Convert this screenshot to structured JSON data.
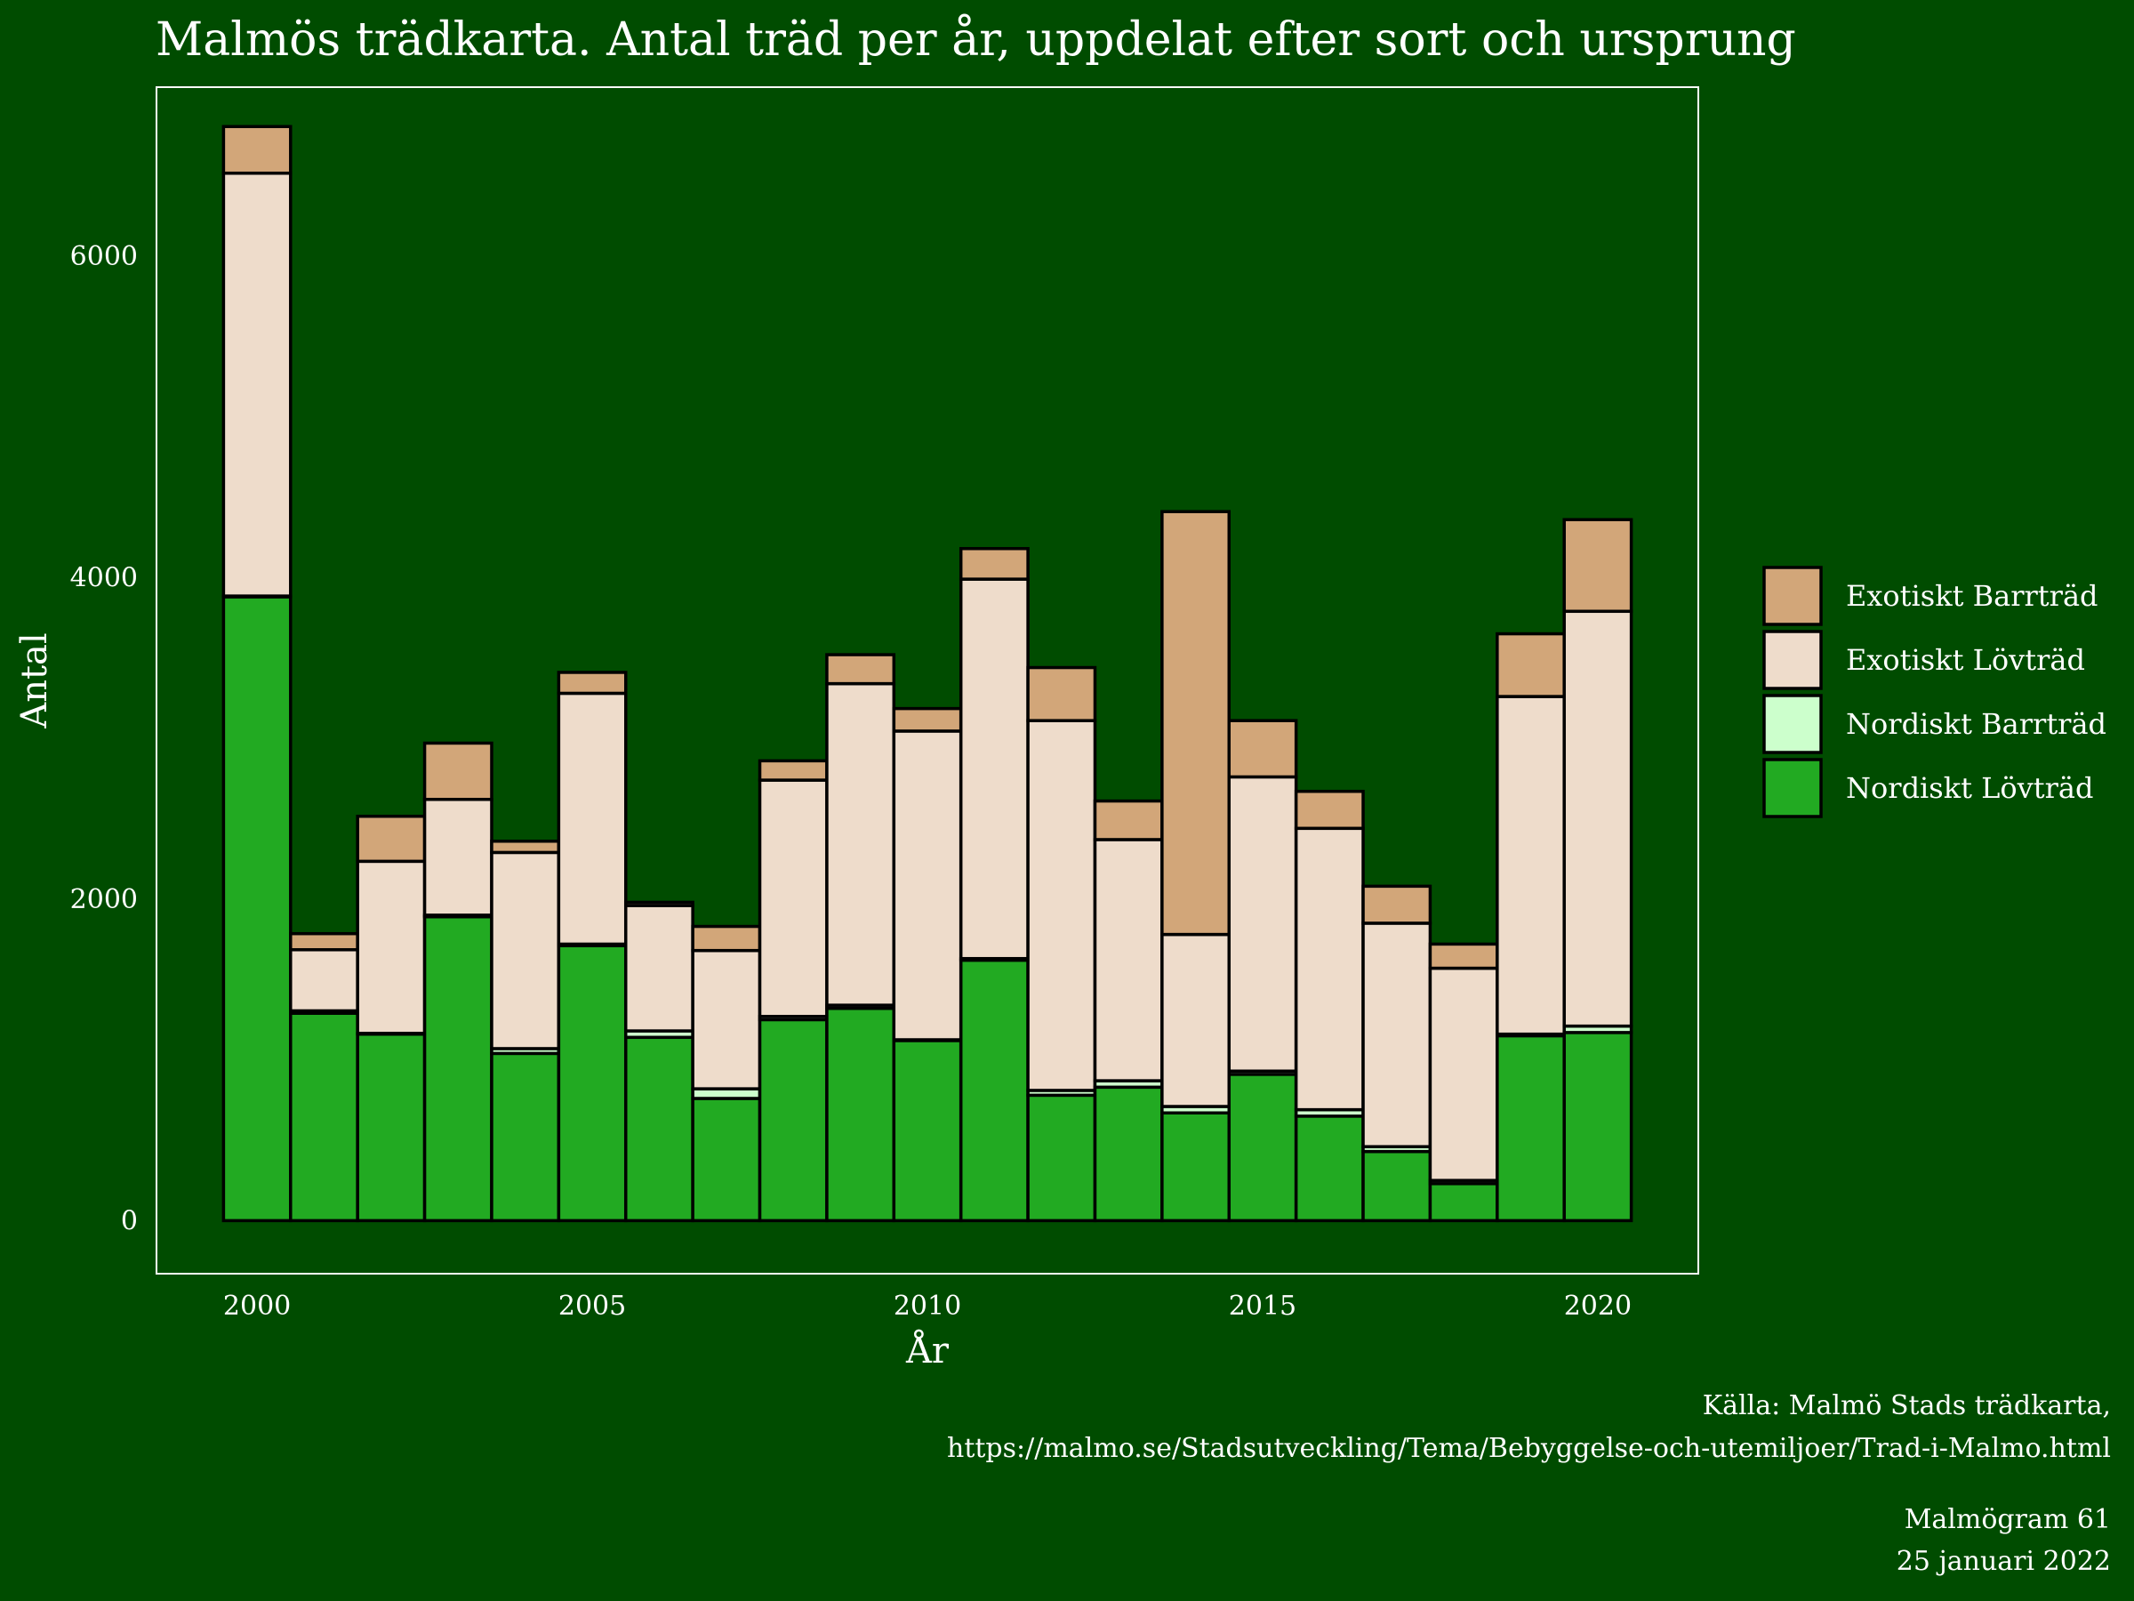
{
  "title": "Malmös trädkarta. Antal träd per år, uppdelat efter sort och ursprung",
  "caption": {
    "source_line1": "Källa: Malmö Stads trädkarta,",
    "source_line2": "https://malmo.se/Stadsutveckling/Tema/Bebyggelse-och-utemiljoer/Trad-i-Malmo.html",
    "publication": "Malmögram 61",
    "date": "25 januari 2022"
  },
  "colors": {
    "background": "#004c00",
    "panel_border": "#ffffff",
    "Nordiskt Lövträd": "#22aa22",
    "Nordiskt Barrträd": "#ccffcc",
    "Exotiskt Lövträd": "#eedccb",
    "Exotiskt Barrträd": "#d2a679"
  },
  "chart_data": {
    "type": "bar",
    "stacked": true,
    "xlabel": "År",
    "ylabel": "Antal",
    "xlim": [
      1998.5,
      2021.5
    ],
    "ylim": [
      -330,
      7050
    ],
    "x_ticks": [
      2000,
      2005,
      2010,
      2015,
      2020
    ],
    "y_ticks": [
      0,
      2000,
      4000,
      6000
    ],
    "grid": false,
    "legend_position": "right",
    "legend_order": [
      "Exotiskt Barrträd",
      "Exotiskt Lövträd",
      "Nordiskt Barrträd",
      "Nordiskt Lövträd"
    ],
    "x": [
      2000,
      2001,
      2002,
      2003,
      2004,
      2005,
      2006,
      2007,
      2008,
      2009,
      2010,
      2011,
      2012,
      2013,
      2014,
      2015,
      2016,
      2017,
      2018,
      2019,
      2020
    ],
    "series": [
      {
        "name": "Nordiskt Lövträd",
        "values": [
          3880,
          1290,
          1160,
          1890,
          1040,
          1710,
          1140,
          760,
          1250,
          1320,
          1120,
          1620,
          780,
          830,
          670,
          910,
          650,
          430,
          230,
          1150,
          1170
        ]
      },
      {
        "name": "Nordiskt Barrträd",
        "values": [
          5,
          15,
          5,
          10,
          30,
          10,
          40,
          60,
          20,
          20,
          5,
          10,
          30,
          40,
          40,
          20,
          40,
          30,
          20,
          10,
          40
        ]
      },
      {
        "name": "Exotiskt Lövträd",
        "values": [
          2630,
          380,
          1070,
          720,
          1220,
          1560,
          780,
          860,
          1470,
          2000,
          1920,
          2360,
          2300,
          1500,
          1070,
          1830,
          1750,
          1390,
          1320,
          2100,
          2580
        ]
      },
      {
        "name": "Exotiskt Barrträd",
        "values": [
          290,
          100,
          280,
          350,
          70,
          130,
          20,
          150,
          120,
          180,
          140,
          190,
          330,
          240,
          2630,
          350,
          230,
          230,
          150,
          390,
          570
        ]
      }
    ]
  }
}
